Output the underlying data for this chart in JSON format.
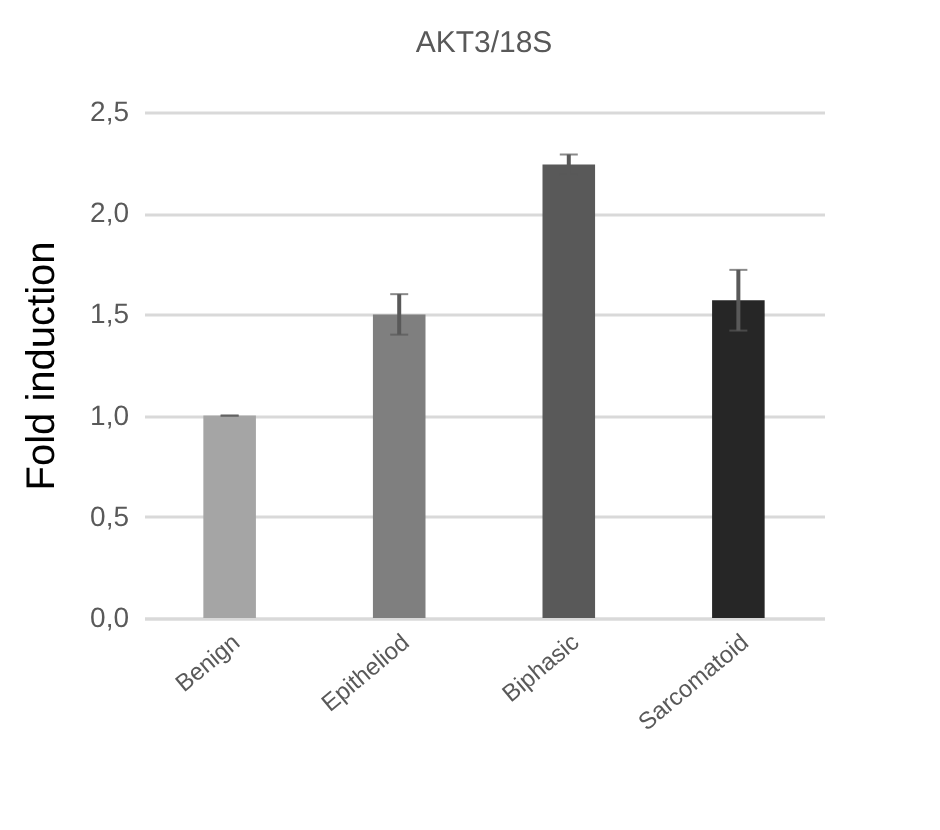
{
  "chart_data": {
    "type": "bar",
    "title": "AKT3/18S",
    "ylabel": "Fold induction",
    "categories": [
      "Benign",
      "Epitheliod",
      "Biphasic",
      "Sarcomatoid"
    ],
    "values": [
      1.0,
      1.5,
      2.24,
      1.57
    ],
    "errors": [
      0,
      0.1,
      0.05,
      0.15
    ],
    "colors": [
      "#a5a5a5",
      "#7f7f7f",
      "#595959",
      "#262626"
    ],
    "ylim": [
      0,
      2.5
    ],
    "yticks": [
      {
        "value": 0,
        "label": "0,0"
      },
      {
        "value": 0.5,
        "label": "0,5"
      },
      {
        "value": 1,
        "label": "1,0"
      },
      {
        "value": 1.5,
        "label": "1,5"
      },
      {
        "value": 2,
        "label": "2,0"
      },
      {
        "value": 2.5,
        "label": "2,5"
      }
    ],
    "grid": "y"
  }
}
